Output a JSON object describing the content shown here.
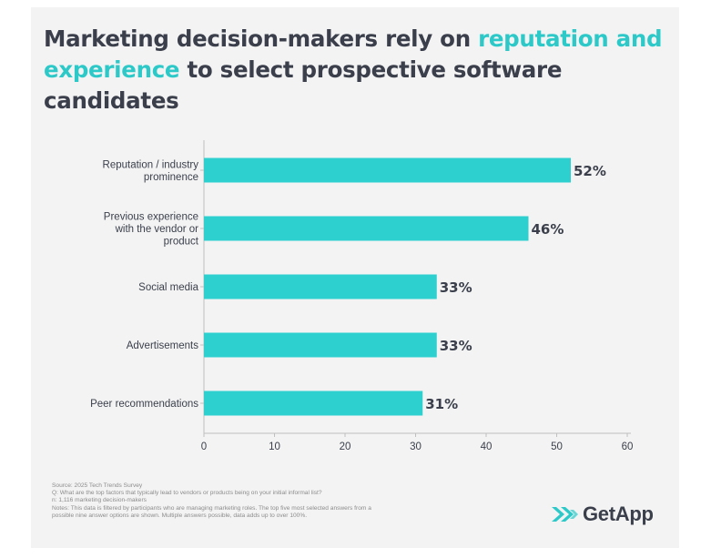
{
  "title": {
    "part1": "Marketing decision-makers rely on ",
    "highlight1": "reputation and",
    "highlight2": "experience",
    "part2": " to select prospective software candidates"
  },
  "chart_data": {
    "type": "bar",
    "orientation": "horizontal",
    "categories": [
      [
        "Reputation / industry",
        "prominence"
      ],
      [
        "Previous experience",
        "with the vendor or",
        "product"
      ],
      [
        "Social media"
      ],
      [
        "Advertisements"
      ],
      [
        "Peer recommendations"
      ]
    ],
    "values": [
      52,
      46,
      33,
      33,
      31
    ],
    "value_labels": [
      "52%",
      "46%",
      "33%",
      "33%",
      "31%"
    ],
    "xlim": [
      0,
      60
    ],
    "xticks": [
      0,
      10,
      20,
      30,
      40,
      50,
      60
    ],
    "grid": false,
    "bar_color": "#2dcfcf"
  },
  "footnote": {
    "source": "Source: 2025 Tech Trends Survey",
    "question": "Q: What are the top factors that typically lead to vendors or products being on your initial informal list?",
    "n": "n: 1,116 marketing decision-makers",
    "notes1": "Notes: This data is filtered by participants who are managing marketing roles. The top five most selected answers from a",
    "notes2": "possible nine answer options are shown. Multiple answers possible, data adds up to over 100%."
  },
  "logo": {
    "text": "GetApp",
    "icon": "getapp-chevron-icon",
    "icon_color": "#2dc9c9"
  },
  "colors": {
    "title": "#3a3f4b",
    "accent": "#2dc9c9",
    "background": "#f3f3f3"
  }
}
